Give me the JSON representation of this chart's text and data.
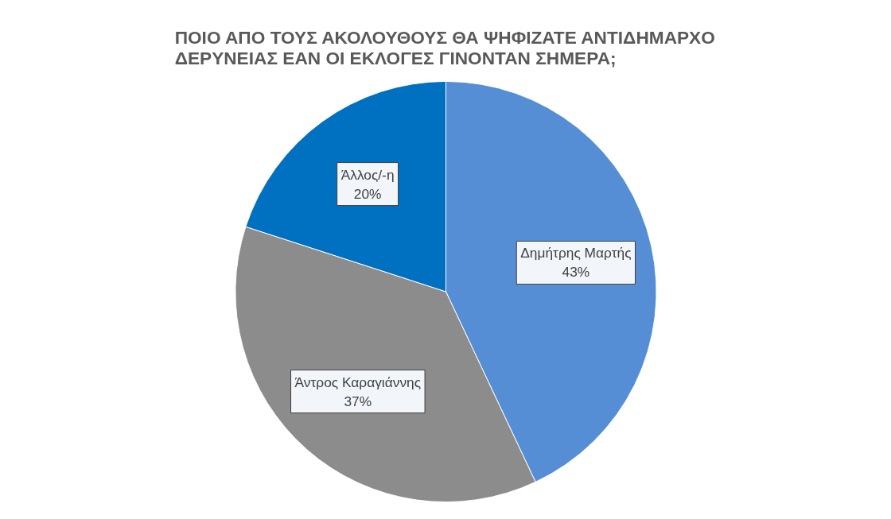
{
  "chart_data": {
    "type": "pie",
    "title": "ΠΟΙΟ ΑΠΟ ΤΟΥΣ ΑΚΟΛΟΥΘΟΥΣ ΘΑ ΨΗΦΙΖΑΤΕ ΑΝΤΙΔΗΜΑΡΧΟ ΔΕΡΥΝΕΙΑΣ ΕΑΝ ΟΙ ΕΚΛΟΓΕΣ ΓΙΝΟΝΤΑΝ ΣΗΜΕΡΑ;",
    "categories": [
      "Δημήτρης Μαρτής",
      "Άντρος Καραγιάννης",
      "Άλλος/-η"
    ],
    "values": [
      43,
      37,
      20
    ],
    "colors": [
      "#558ed5",
      "#8c8c8c",
      "#0070c0"
    ],
    "value_labels": [
      "43%",
      "37%",
      "20%"
    ]
  }
}
